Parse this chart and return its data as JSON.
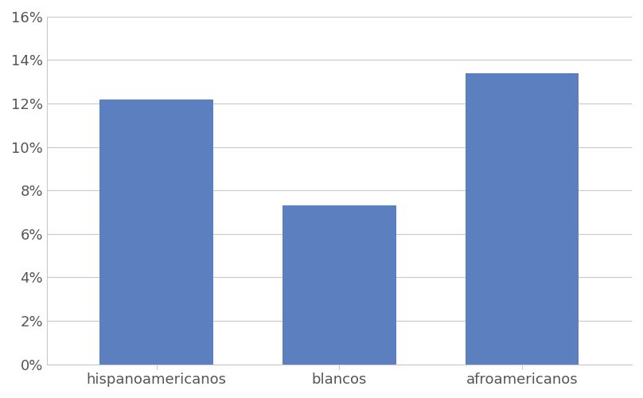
{
  "categories": [
    "hispanoamericanos",
    "blancos",
    "afroamericanos"
  ],
  "values": [
    0.122,
    0.073,
    0.134
  ],
  "bar_color": "#5b7fbf",
  "background_color": "#ffffff",
  "ylim": [
    0,
    0.16
  ],
  "yticks": [
    0.0,
    0.02,
    0.04,
    0.06,
    0.08,
    0.1,
    0.12,
    0.14,
    0.16
  ],
  "grid_color": "#c8c8c8",
  "tick_label_fontsize": 13,
  "bar_width": 0.62
}
